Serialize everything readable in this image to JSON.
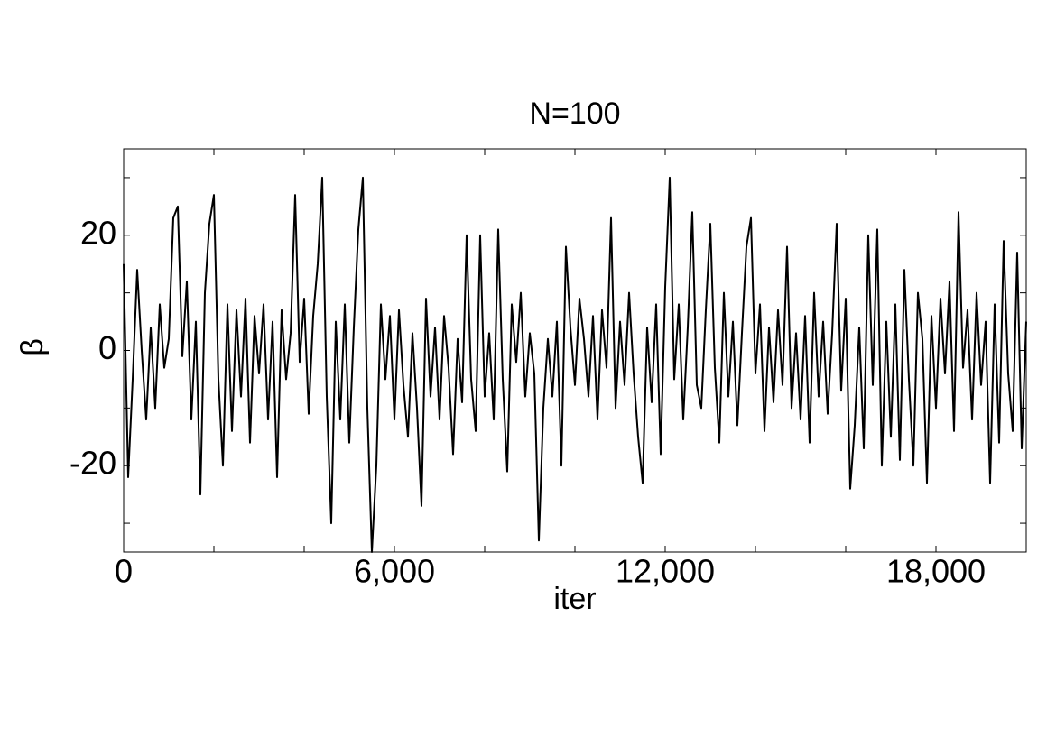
{
  "chart_data": {
    "type": "line",
    "title": "N=100",
    "xlabel": "iter",
    "ylabel": "β",
    "color": "#000000",
    "xlim": [
      0,
      20000
    ],
    "ylim": [
      -35,
      35
    ],
    "xticks": [
      0,
      {
        "value": 6000,
        "label": "6,000"
      },
      {
        "value": 12000,
        "label": "12,000"
      },
      {
        "value": 18000,
        "label": "18,000"
      }
    ],
    "xminor": [
      2000,
      4000,
      8000,
      10000,
      14000,
      16000,
      20000
    ],
    "yticks": [
      -20,
      0,
      20
    ],
    "yminor": [
      -30,
      -10,
      10,
      30
    ],
    "x": [
      0,
      100,
      200,
      300,
      400,
      500,
      600,
      700,
      800,
      900,
      1000,
      1100,
      1200,
      1300,
      1400,
      1500,
      1600,
      1700,
      1800,
      1900,
      2000,
      2100,
      2200,
      2300,
      2400,
      2500,
      2600,
      2700,
      2800,
      2900,
      3000,
      3100,
      3200,
      3300,
      3400,
      3500,
      3600,
      3700,
      3800,
      3900,
      4000,
      4100,
      4200,
      4300,
      4400,
      4500,
      4600,
      4700,
      4800,
      4900,
      5000,
      5100,
      5200,
      5300,
      5400,
      5500,
      5600,
      5700,
      5800,
      5900,
      6000,
      6100,
      6200,
      6300,
      6400,
      6500,
      6600,
      6700,
      6800,
      6900,
      7000,
      7100,
      7200,
      7300,
      7400,
      7500,
      7600,
      7700,
      7800,
      7900,
      8000,
      8100,
      8200,
      8300,
      8400,
      8500,
      8600,
      8700,
      8800,
      8900,
      9000,
      9100,
      9200,
      9300,
      9400,
      9500,
      9600,
      9700,
      9800,
      9900,
      10000,
      10100,
      10200,
      10300,
      10400,
      10500,
      10600,
      10700,
      10800,
      10900,
      11000,
      11100,
      11200,
      11300,
      11400,
      11500,
      11600,
      11700,
      11800,
      11900,
      12000,
      12100,
      12200,
      12300,
      12400,
      12500,
      12600,
      12700,
      12800,
      12900,
      13000,
      13100,
      13200,
      13300,
      13400,
      13500,
      13600,
      13700,
      13800,
      13900,
      14000,
      14100,
      14200,
      14300,
      14400,
      14500,
      14600,
      14700,
      14800,
      14900,
      15000,
      15100,
      15200,
      15300,
      15400,
      15500,
      15600,
      15700,
      15800,
      15900,
      16000,
      16100,
      16200,
      16300,
      16400,
      16500,
      16600,
      16700,
      16800,
      16900,
      17000,
      17100,
      17200,
      17300,
      17400,
      17500,
      17600,
      17700,
      17800,
      17900,
      18000,
      18100,
      18200,
      18300,
      18400,
      18500,
      18600,
      18700,
      18800,
      18900,
      19000,
      19100,
      19200,
      19300,
      19400,
      19500,
      19600,
      19700,
      19800,
      19900,
      20000
    ],
    "values": [
      15,
      -22,
      -5,
      14,
      0,
      -12,
      4,
      -10,
      8,
      -3,
      2,
      23,
      25,
      -1,
      12,
      -12,
      5,
      -25,
      10,
      22,
      27,
      -5,
      -20,
      8,
      -14,
      7,
      -8,
      9,
      -16,
      6,
      -4,
      8,
      -12,
      5,
      -22,
      7,
      -5,
      3,
      27,
      -2,
      9,
      -11,
      6,
      15,
      30,
      -8,
      -30,
      5,
      -12,
      8,
      -16,
      4,
      21,
      30,
      -10,
      -35,
      -20,
      8,
      -5,
      6,
      -12,
      7,
      -6,
      -15,
      3,
      -10,
      -27,
      9,
      -8,
      4,
      -12,
      6,
      -3,
      -18,
      2,
      -9,
      20,
      -5,
      -14,
      20,
      -8,
      3,
      -12,
      21,
      -5,
      -21,
      8,
      -2,
      10,
      -8,
      3,
      -4,
      -33,
      -10,
      2,
      -8,
      5,
      -20,
      18,
      4,
      -6,
      9,
      2,
      -8,
      6,
      -12,
      7,
      -3,
      23,
      -10,
      5,
      -6,
      10,
      -4,
      -15,
      -23,
      4,
      -9,
      8,
      -18,
      11,
      30,
      -5,
      8,
      -12,
      4,
      24,
      -6,
      -10,
      7,
      22,
      -3,
      -16,
      10,
      -8,
      5,
      -13,
      3,
      18,
      23,
      -4,
      8,
      -14,
      4,
      -9,
      7,
      -6,
      18,
      -10,
      3,
      -12,
      6,
      -16,
      10,
      -8,
      5,
      -11,
      3,
      22,
      -7,
      9,
      -24,
      -13,
      4,
      -17,
      20,
      -6,
      21,
      -20,
      5,
      -15,
      8,
      -19,
      14,
      -5,
      -20,
      10,
      2,
      -23,
      6,
      -10,
      9,
      -4,
      12,
      -14,
      24,
      -3,
      7,
      -12,
      10,
      -6,
      5,
      -23,
      8,
      -16,
      19,
      -4,
      -14,
      17,
      -17,
      5
    ]
  }
}
